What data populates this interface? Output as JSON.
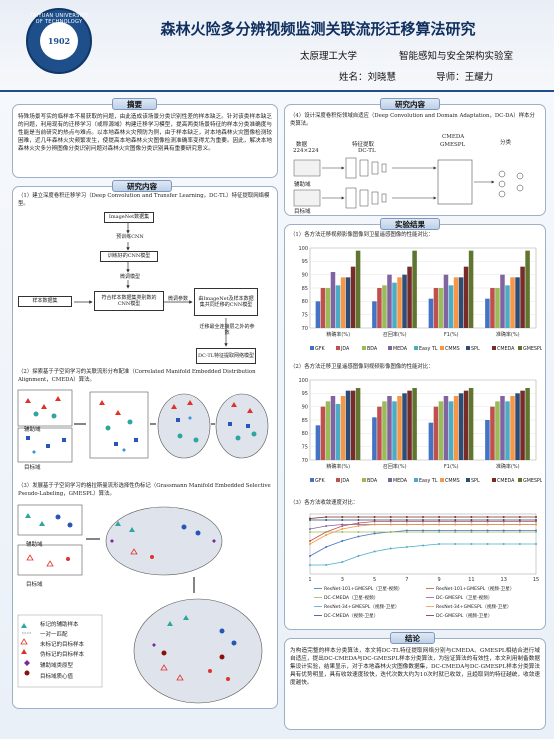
{
  "header": {
    "logo_year": "1902",
    "logo_ring": "TAIYUAN UNIVERSITY OF TECHNOLOGY",
    "title": "森林火险多分辨视频监测关联流形迁移算法研究",
    "affiliation": "太原理工大学",
    "lab": "智能感知与安全架构实验室",
    "name_line": "姓名：刘晓慧",
    "advisor_line": "导师：王耀力"
  },
  "abstract": {
    "title": "摘要",
    "text": "特殊场景写实的临样本不易获取的问题，由此造成该场景分类识别性差的样本缺乏。针对该类样本缺乏的问题，利用现有的迁移学习（或称源域）构建迁移学习模型，提高两类场景特征的样本分类准确度与性能是当前研究的热点与难点。以本地森林火灾预防为例，由于样本缺乏，对本地森林火灾图像检测较困难，近几年森林火灾频繁发生，使提高本地森林火灾图像检测准确率变得尤为重要。因此，解决本地森林火灾多分辨图像分类识别问题对森林火灾图像分类识别具有重要研究意义。"
  },
  "research_left": {
    "title": "研究内容",
    "item1": "（1）建立深度卷积迁移学习（Deep Convolution and Transfer Learning，DC-TL）特征提取网络模型。",
    "flow": {
      "imagenet": "ImageNet数据集",
      "pretrain": "预训练CNN",
      "trained": "训练好的CNN模型",
      "finetune": "微调模型",
      "sample": "样本数据集",
      "mid": "符合样本数据集类别数的CNN模型",
      "fine_label": "微调参数",
      "adapted": "由ImageNet及样本数据集共同迁移的CNN模型",
      "transfer": "迁移最全连接层之外的参数",
      "dctl": "DC-TL特征提取网络模型"
    },
    "item2": "（2）探索基于子空间学习的关联流形分布配准（Correlated Manifold Embedded Distribution Alignment，CMEDA）算法。",
    "aux_domain": "辅助域",
    "target_domain": "目标域",
    "item3": "（3）发展基于子空间学习的格拉斯曼流形选择性伪标记（Grassmann Manifold Embedded Selective Pseudo-Labeling，GMESPL）算法。",
    "aux_domain2": "辅助域",
    "target_domain2": "目标域",
    "legend": [
      "标记的辅助样本",
      "一对一匹配",
      "未标记的目标样本",
      "伪标记的目标样本",
      "辅助域类原型",
      "目标域质心值"
    ]
  },
  "research_right": {
    "title": "研究内容",
    "item4": "（4）设计深度卷积衔领域自适应（Deep Convolution and Domain Adaptation，DC-DA）样本分类算法。",
    "diagram": {
      "data": "数据",
      "size": "224×224",
      "feature": "特征提取",
      "dctl": "DC-TL",
      "cmeda": "CMEDA",
      "gmespl": "GMESPL",
      "classify": "分类",
      "aux": "辅助域",
      "target": "目标域"
    }
  },
  "results": {
    "title": "实验结果",
    "item1": "（1）各方法迁移视频影像图像到卫星遥感图像的性能对比：",
    "item2": "（2）各方法迁移卫星遥感图像到视频影像图像的性能对比：",
    "item3": "（3）各方法收敛速度对比："
  },
  "colors": {
    "GFK": "#4472c4",
    "JDA": "#c0504d",
    "BDA": "#9bbb59",
    "MEDA": "#8064a2",
    "EasyTL": "#4bacc6",
    "CMMS": "#f79646",
    "SPL": "#2c4d75",
    "CMEDA": "#772c2a",
    "GMESPL": "#5f7530"
  },
  "chart_data": [
    {
      "type": "bar",
      "title": "",
      "categories": [
        "精确率(%)",
        "召回率(%)",
        "F1(%)",
        "准确率(%)"
      ],
      "series": [
        {
          "name": "GFK",
          "values": [
            80,
            80,
            81,
            81
          ]
        },
        {
          "name": "JDA",
          "values": [
            85,
            85,
            85,
            85
          ]
        },
        {
          "name": "BDA",
          "values": [
            85,
            86,
            85,
            85
          ]
        },
        {
          "name": "MEDA",
          "values": [
            91,
            90,
            90,
            90
          ]
        },
        {
          "name": "Easy TL",
          "values": [
            86,
            87,
            86,
            86
          ]
        },
        {
          "name": "CMMS",
          "values": [
            89,
            89,
            89,
            89
          ]
        },
        {
          "name": "SPL",
          "values": [
            89,
            90,
            89,
            89
          ]
        },
        {
          "name": "CMEDA",
          "values": [
            93,
            93,
            93,
            93
          ]
        },
        {
          "name": "GMESPL",
          "values": [
            99,
            99,
            99,
            99
          ]
        }
      ],
      "ylim": [
        70,
        100
      ],
      "yticks": [
        70,
        75,
        80,
        85,
        90,
        95,
        100
      ]
    },
    {
      "type": "bar",
      "title": "",
      "categories": [
        "精确率(%)",
        "召回率(%)",
        "F1(%)",
        "准确率(%)"
      ],
      "series": [
        {
          "name": "GFK",
          "values": [
            83,
            86,
            84,
            85
          ]
        },
        {
          "name": "JDA",
          "values": [
            90,
            90,
            90,
            90
          ]
        },
        {
          "name": "BDA",
          "values": [
            92,
            92,
            92,
            92
          ]
        },
        {
          "name": "MEDA",
          "values": [
            94,
            94,
            94,
            94
          ]
        },
        {
          "name": "Easy TL",
          "values": [
            91,
            92,
            92,
            92
          ]
        },
        {
          "name": "CMMS",
          "values": [
            94,
            94,
            94,
            94
          ]
        },
        {
          "name": "SPL",
          "values": [
            96,
            95,
            95,
            95
          ]
        },
        {
          "name": "CMEDA",
          "values": [
            96,
            96,
            96,
            96
          ]
        },
        {
          "name": "GMESPL",
          "values": [
            97,
            97,
            97,
            97
          ]
        }
      ],
      "ylim": [
        70,
        100
      ],
      "yticks": [
        70,
        75,
        80,
        85,
        90,
        95,
        100
      ]
    },
    {
      "type": "line",
      "title": "",
      "x": [
        1,
        2,
        3,
        4,
        5,
        6,
        7,
        8,
        9,
        10,
        11,
        12,
        13,
        14,
        15
      ],
      "xticks": [
        1,
        3,
        5,
        7,
        9,
        11,
        13,
        15
      ],
      "series": [
        {
          "name": "ResNet-101+GMESPL（卫星-视频）",
          "color": "#4472c4",
          "values": [
            72,
            78,
            82,
            85,
            87,
            88,
            89,
            89,
            89,
            89,
            89,
            89,
            89,
            89,
            89
          ]
        },
        {
          "name": "ResNet-101+GMESPL（视频-卫星）",
          "color": "#c0504d",
          "values": [
            82,
            88,
            92,
            94,
            95,
            95,
            95,
            95,
            95,
            95,
            95,
            95,
            95,
            95,
            95
          ]
        },
        {
          "name": "DC-CMEDA（卫星-视频）",
          "color": "#9bbb59",
          "values": [
            88,
            88,
            88,
            88,
            88,
            88,
            88,
            88,
            88,
            88,
            88,
            88,
            88,
            88,
            88
          ]
        },
        {
          "name": "DC-GMESPL（卫星-视频）",
          "color": "#8064a2",
          "values": [
            90,
            92,
            93,
            93,
            93,
            93,
            93,
            93,
            93,
            93,
            93,
            93,
            93,
            93,
            93
          ]
        },
        {
          "name": "ResNet-34+GMESPL（视频-卫星）",
          "color": "#4bacc6",
          "values": [
            66,
            66,
            68,
            72,
            75,
            77,
            78,
            79,
            80,
            80,
            80,
            80,
            80,
            80,
            80
          ]
        },
        {
          "name": "ResNet-34+GMESPL（视频-卫星）",
          "color": "#f79646",
          "values": [
            80,
            86,
            90,
            92,
            93,
            93,
            93,
            93,
            93,
            93,
            93,
            93,
            93,
            93,
            93
          ]
        },
        {
          "name": "DC-CMEDA（视频-卫星）",
          "color": "#2c4d75",
          "values": [
            96,
            96,
            96,
            96,
            96,
            96,
            96,
            96,
            96,
            96,
            96,
            96,
            96,
            96,
            96
          ]
        },
        {
          "name": "DC-GMESPL（视频-卫星）",
          "color": "#772c2a",
          "values": [
            97,
            98,
            98,
            98,
            98,
            98,
            98,
            98,
            98,
            98,
            98,
            98,
            98,
            98,
            98
          ]
        }
      ],
      "ylim": [
        60,
        100
      ]
    }
  ],
  "conclusion": {
    "title": "结论",
    "text": "为构造完整的样本分类算法，本文将DC-TL特征提取网络分别与CMEDA、GMESPL相结合进行域自适应，提出DC-CMEDA与DC-GMESPL样本分类算法，为验证算法的有效性，本文利用制备数据集设计实验，结果显示，对于本地森林火灾图像数据集，DC-CMEDA与DC-GMESPL样本分类算法具有优势明显，具有收敛速度较快，迭代次数大约为10次时就已收敛，且趋取到的特征越统，收敛速度越快。"
  }
}
